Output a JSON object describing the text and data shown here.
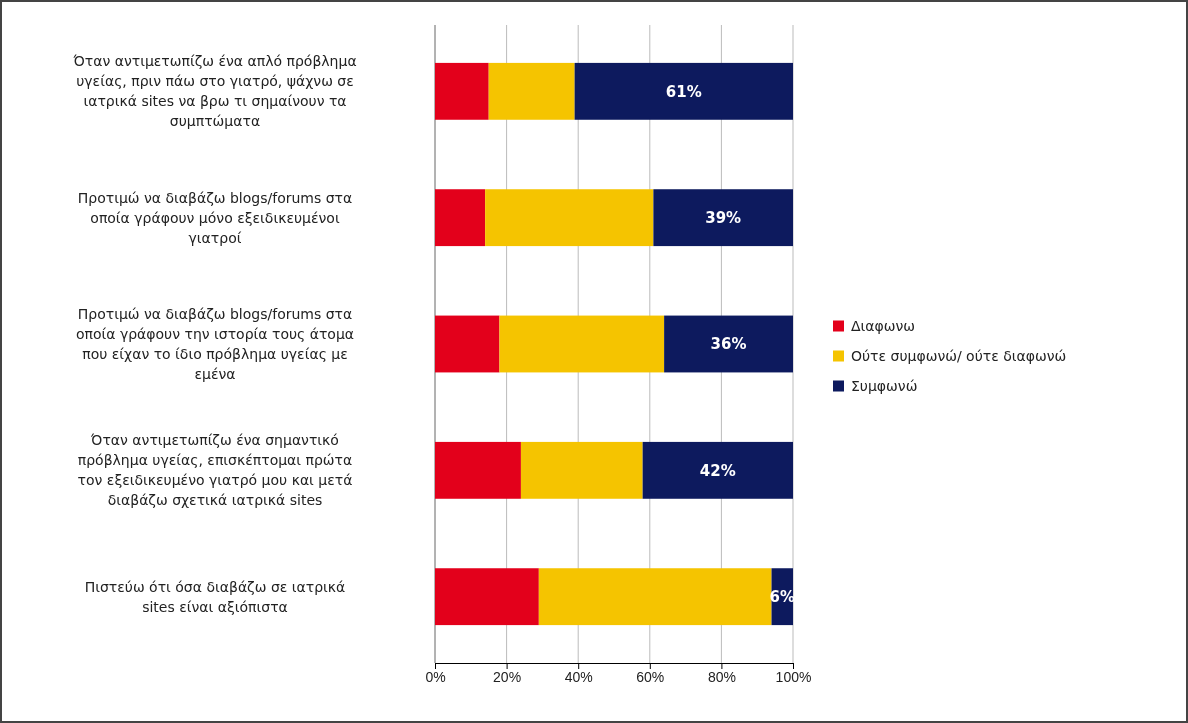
{
  "chart_data": {
    "type": "bar",
    "orientation": "horizontal",
    "stacked": true,
    "categories": [
      "Όταν αντιμετωπίζω ένα απλό πρόβλημα υγείας, πριν πάω στο γιατρό, ψάχνω σε ιατρικά sites να βρω τι σημαίνουν τα συμπτώματα",
      "Προτιμώ να διαβάζω blogs/forums στα οποία γράφουν μόνο εξειδικευμένοι γιατροί",
      "Προτιμώ να διαβάζω blogs/forums στα οποία γράφουν την ιστορία τους άτομα που είχαν το ίδιο πρόβλημα υγείας με εμένα",
      "Όταν αντιμετωπίζω ένα σημαντικό πρόβλημα υγείας, επισκέπτομαι πρώτα τον εξειδικευμένο γιατρό μου και μετά διαβάζω σχετικά ιατρικά sites",
      "Πιστεύω ότι όσα διαβάζω σε ιατρικά sites είναι αξιόπιστα"
    ],
    "series": [
      {
        "name": "Διαφωνω",
        "color": "#e3001b",
        "values": [
          15,
          14,
          18,
          24,
          29
        ]
      },
      {
        "name": "Ούτε συμφωνώ/ ούτε διαφωνώ",
        "color": "#f5c400",
        "values": [
          24,
          47,
          46,
          34,
          65
        ]
      },
      {
        "name": "Συμφωνώ",
        "color": "#0d1a5e",
        "values": [
          61,
          39,
          36,
          42,
          6
        ],
        "value_labels": [
          "61%",
          "39%",
          "36%",
          "42%",
          "6%"
        ]
      }
    ],
    "xlim": [
      0,
      100
    ],
    "xticks": [
      {
        "value": 0,
        "label": "0%"
      },
      {
        "value": 20,
        "label": "20%"
      },
      {
        "value": 40,
        "label": "40%"
      },
      {
        "value": 60,
        "label": "60%"
      },
      {
        "value": 80,
        "label": "80%"
      },
      {
        "value": 100,
        "label": "100%"
      }
    ],
    "grid": "x",
    "legend": "right"
  }
}
